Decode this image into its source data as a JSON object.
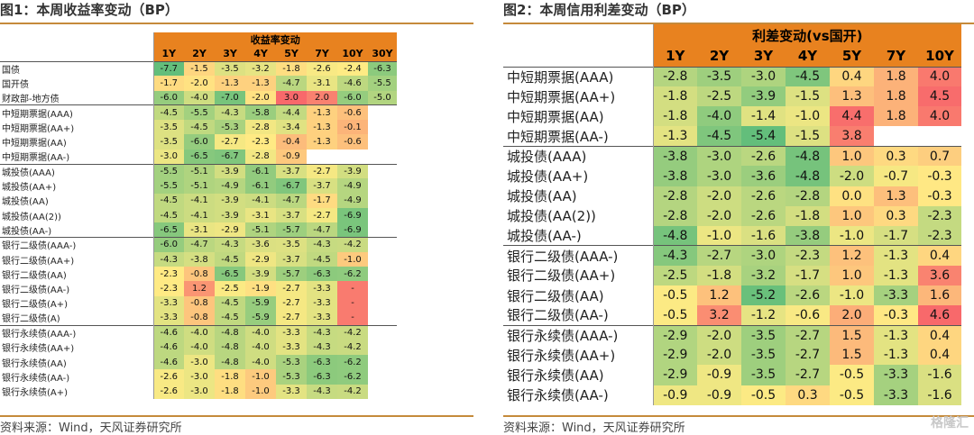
{
  "chart_data": [
    {
      "type": "table",
      "title": "图1：本周收益率变动（BP）",
      "header_group": "收益率变动",
      "columns": [
        "1Y",
        "2Y",
        "3Y",
        "4Y",
        "5Y",
        "7Y",
        "10Y",
        "30Y"
      ],
      "groups": [
        [
          {
            "label": "国债",
            "values": [
              "-7.7",
              "-1.5",
              "-3.5",
              "-3.2",
              "-1.8",
              "-2.6",
              "-2.4",
              "-6.3"
            ]
          },
          {
            "label": "国开债",
            "values": [
              "-1.7",
              "-2.0",
              "-1.3",
              "-1.3",
              "-4.7",
              "-3.1",
              "-4.6",
              "-5.5"
            ]
          },
          {
            "label": "财政部-地方债",
            "values": [
              "-6.0",
              "-4.0",
              "-7.0",
              "-2.0",
              "3.0",
              "2.0",
              "-6.0",
              "-5.0"
            ]
          }
        ],
        [
          {
            "label": "中短期票据(AAA)",
            "values": [
              "-4.5",
              "-5.5",
              "-4.3",
              "-5.8",
              "-4.4",
              "-1.3",
              "-0.6",
              ""
            ]
          },
          {
            "label": "中短期票据(AA+)",
            "values": [
              "-3.5",
              "-4.5",
              "-5.3",
              "-2.8",
              "-3.4",
              "-1.3",
              "-0.1",
              ""
            ]
          },
          {
            "label": "中短期票据(AA)",
            "values": [
              "-3.5",
              "-6.0",
              "-2.7",
              "-2.3",
              "-0.4",
              "-1.3",
              "-0.6",
              ""
            ]
          },
          {
            "label": "中短期票据(AA-)",
            "values": [
              "-3.0",
              "-6.5",
              "-6.7",
              "-2.8",
              "-0.9",
              "",
              "",
              ""
            ]
          }
        ],
        [
          {
            "label": "城投债(AAA)",
            "values": [
              "-5.5",
              "-5.1",
              "-3.9",
              "-6.1",
              "-3.7",
              "-2.7",
              "-3.9",
              ""
            ]
          },
          {
            "label": "城投债(AA+)",
            "values": [
              "-5.5",
              "-5.1",
              "-4.9",
              "-6.1",
              "-6.7",
              "-3.7",
              "-4.9",
              ""
            ]
          },
          {
            "label": "城投债(AA)",
            "values": [
              "-4.5",
              "-4.1",
              "-3.9",
              "-4.1",
              "-4.7",
              "-1.7",
              "-4.9",
              ""
            ]
          },
          {
            "label": "城投债(AA(2))",
            "values": [
              "-4.5",
              "-4.1",
              "-3.9",
              "-3.1",
              "-3.7",
              "-2.7",
              "-6.9",
              ""
            ]
          },
          {
            "label": "城投债(AA-)",
            "values": [
              "-6.5",
              "-3.1",
              "-2.9",
              "-5.1",
              "-5.7",
              "-4.7",
              "-6.9",
              ""
            ]
          }
        ],
        [
          {
            "label": "银行二级债(AAA-)",
            "values": [
              "-6.0",
              "-4.7",
              "-4.3",
              "-3.6",
              "-3.5",
              "-4.3",
              "-4.2",
              ""
            ]
          },
          {
            "label": "银行二级债(AA+)",
            "values": [
              "-4.3",
              "-3.8",
              "-4.5",
              "-2.9",
              "-3.7",
              "-4.5",
              "-1.0",
              ""
            ]
          },
          {
            "label": "银行二级债(AA)",
            "values": [
              "-2.3",
              "-0.8",
              "-6.5",
              "-3.9",
              "-5.7",
              "-6.3",
              "-6.2",
              ""
            ]
          },
          {
            "label": "银行二级债(AA-)",
            "values": [
              "-2.3",
              "1.2",
              "-2.5",
              "-1.9",
              "-2.7",
              "-3.3",
              "-",
              ""
            ]
          },
          {
            "label": "银行二级债(A+)",
            "values": [
              "-3.3",
              "-0.8",
              "-4.5",
              "-5.9",
              "-2.7",
              "-3.3",
              "-",
              ""
            ]
          },
          {
            "label": "银行二级债(A)",
            "values": [
              "-3.3",
              "-0.8",
              "-4.5",
              "-5.9",
              "-2.7",
              "-3.3",
              "-",
              ""
            ]
          }
        ],
        [
          {
            "label": "银行永续债(AAA-)",
            "values": [
              "-4.6",
              "-4.0",
              "-4.8",
              "-4.0",
              "-3.3",
              "-4.3",
              "-4.2",
              ""
            ]
          },
          {
            "label": "银行永续债(AA+)",
            "values": [
              "-4.6",
              "-4.0",
              "-4.8",
              "-4.0",
              "-3.3",
              "-4.3",
              "-4.2",
              ""
            ]
          },
          {
            "label": "银行永续债(AA)",
            "values": [
              "-4.6",
              "-3.0",
              "-4.8",
              "-4.0",
              "-5.3",
              "-6.3",
              "-6.2",
              ""
            ]
          },
          {
            "label": "银行永续债(AA-)",
            "values": [
              "-2.6",
              "-3.0",
              "-1.8",
              "-1.0",
              "-5.3",
              "-6.3",
              "-6.2",
              ""
            ]
          },
          {
            "label": "银行永续债(A+)",
            "values": [
              "-2.6",
              "-3.0",
              "-1.8",
              "-1.0",
              "-3.3",
              "-4.3",
              "-4.2",
              ""
            ]
          }
        ]
      ],
      "source": "资料来源：Wind，天风证券研究所"
    },
    {
      "type": "table",
      "title": "图2：本周信用利差变动（BP）",
      "header_group": "利差变动(vs国开)",
      "columns": [
        "1Y",
        "2Y",
        "3Y",
        "4Y",
        "5Y",
        "7Y",
        "10Y"
      ],
      "groups": [
        [
          {
            "label": "中短期票据(AAA)",
            "values": [
              "-2.8",
              "-3.5",
              "-3.0",
              "-4.5",
              "0.4",
              "1.8",
              "4.0"
            ]
          },
          {
            "label": "中短期票据(AA+)",
            "values": [
              "-1.8",
              "-2.5",
              "-3.9",
              "-1.5",
              "1.3",
              "1.8",
              "4.5"
            ]
          },
          {
            "label": "中短期票据(AA)",
            "values": [
              "-1.8",
              "-4.0",
              "-1.4",
              "-1.0",
              "4.4",
              "1.8",
              "4.0"
            ]
          },
          {
            "label": "中短期票据(AA-)",
            "values": [
              "-1.3",
              "-4.5",
              "-5.4",
              "-1.5",
              "3.8",
              "",
              ""
            ]
          }
        ],
        [
          {
            "label": "城投债(AAA)",
            "values": [
              "-3.8",
              "-3.0",
              "-2.6",
              "-4.8",
              "1.0",
              "0.3",
              "0.7"
            ]
          },
          {
            "label": "城投债(AA+)",
            "values": [
              "-3.8",
              "-3.0",
              "-3.6",
              "-4.8",
              "-2.0",
              "-0.7",
              "-0.3"
            ]
          },
          {
            "label": "城投债(AA)",
            "values": [
              "-2.8",
              "-2.0",
              "-2.6",
              "-2.8",
              "0.0",
              "1.3",
              "-0.3"
            ]
          },
          {
            "label": "城投债(AA(2))",
            "values": [
              "-2.8",
              "-2.0",
              "-2.6",
              "-1.8",
              "1.0",
              "0.3",
              "-2.3"
            ]
          },
          {
            "label": "城投债(AA-)",
            "values": [
              "-4.8",
              "-1.0",
              "-1.6",
              "-3.8",
              "-1.0",
              "-1.7",
              "-2.3"
            ]
          }
        ],
        [
          {
            "label": "银行二级债(AAA-)",
            "values": [
              "-4.3",
              "-2.7",
              "-3.0",
              "-2.3",
              "1.2",
              "-1.3",
              "0.4"
            ]
          },
          {
            "label": "银行二级债(AA+)",
            "values": [
              "-2.5",
              "-1.8",
              "-3.2",
              "-1.7",
              "1.0",
              "-1.3",
              "3.6"
            ]
          },
          {
            "label": "银行二级债(AA)",
            "values": [
              "-0.5",
              "1.2",
              "-5.2",
              "-2.6",
              "-1.0",
              "-3.3",
              "1.6"
            ]
          },
          {
            "label": "银行二级债(AA-)",
            "values": [
              "-0.5",
              "3.2",
              "-1.2",
              "-0.6",
              "2.0",
              "-0.3",
              "4.6"
            ]
          }
        ],
        [
          {
            "label": "银行永续债(AAA-)",
            "values": [
              "-2.9",
              "-2.0",
              "-3.5",
              "-2.7",
              "1.5",
              "-1.3",
              "0.4"
            ]
          },
          {
            "label": "银行永续债(AA+)",
            "values": [
              "-2.9",
              "-2.0",
              "-3.5",
              "-2.7",
              "1.5",
              "-1.3",
              "0.4"
            ]
          },
          {
            "label": "银行永续债(AA)",
            "values": [
              "-2.9",
              "-0.9",
              "-3.5",
              "-2.7",
              "-0.5",
              "-3.3",
              "-1.6"
            ]
          },
          {
            "label": "银行永续债(AA-)",
            "values": [
              "-0.9",
              "-0.9",
              "-0.5",
              "0.3",
              "-0.5",
              "-3.3",
              "-1.6"
            ]
          }
        ]
      ],
      "source": "资料来源：Wind，天风证券研究所"
    }
  ],
  "watermark": "格隆汇",
  "colors": {
    "header": "#e8821f",
    "accent_line": "#c58a3b",
    "neg": "#63be7b",
    "mid": "#ffeb84",
    "pos": "#f8696b"
  }
}
